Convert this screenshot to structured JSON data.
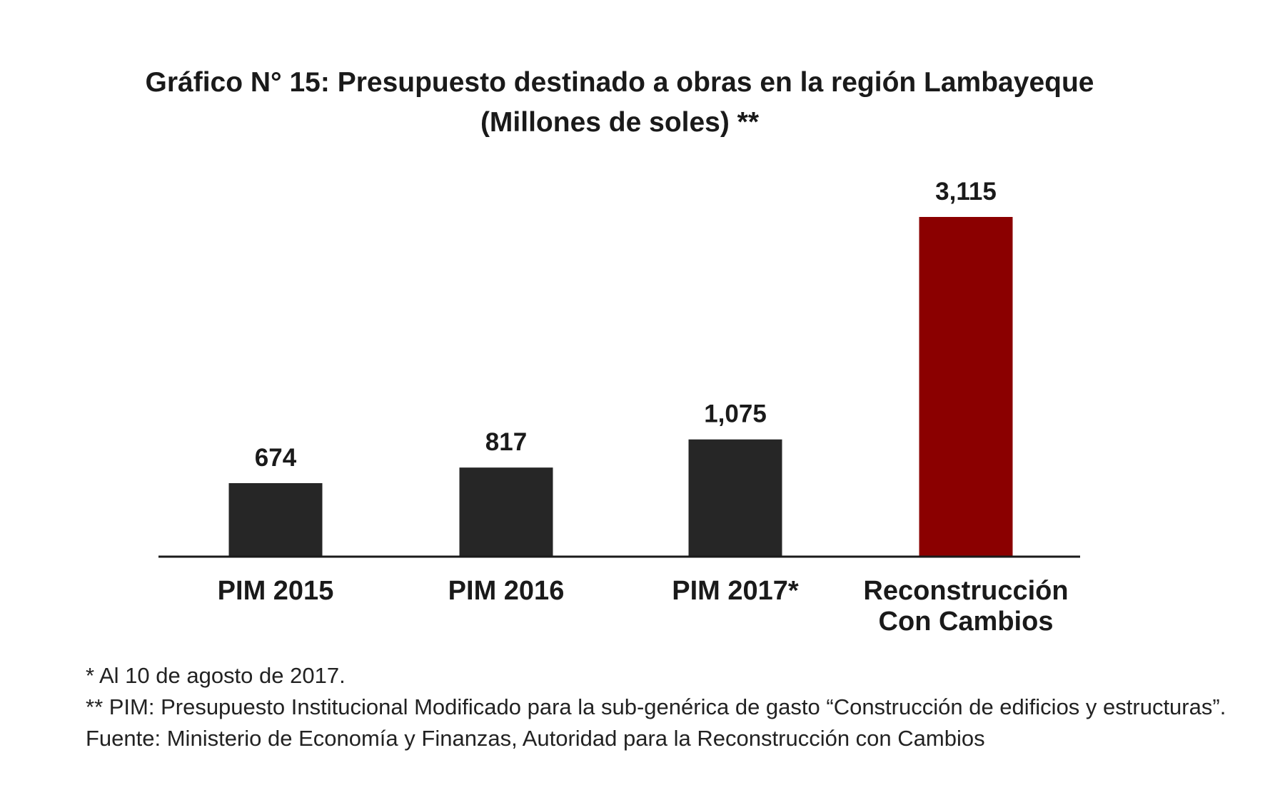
{
  "chart_data": {
    "type": "bar",
    "title": "Gráfico N° 15: Presupuesto destinado a obras en la región Lambayeque",
    "subtitle": "(Millones de soles) **",
    "categories": [
      [
        "PIM 2015"
      ],
      [
        "PIM 2016"
      ],
      [
        "PIM 2017*"
      ],
      [
        "Reconstrucción",
        "Con Cambios"
      ]
    ],
    "values": [
      674,
      817,
      1075,
      3115
    ],
    "value_labels": [
      "674",
      "817",
      "1,075",
      "3,115"
    ],
    "bar_colors": [
      "#262626",
      "#262626",
      "#262626",
      "#8b0000"
    ],
    "xlabel": "",
    "ylabel": "",
    "ylim": [
      0,
      3115
    ],
    "grid": false,
    "legend": "none"
  },
  "footnotes": {
    "note1": "* Al 10 de agosto de 2017.",
    "note2": "** PIM: Presupuesto Institucional Modificado para la sub-genérica de gasto “Construcción de edificios y estructuras”.",
    "source": "Fuente: Ministerio de Economía y Finanzas, Autoridad para la Reconstrucción con Cambios"
  }
}
